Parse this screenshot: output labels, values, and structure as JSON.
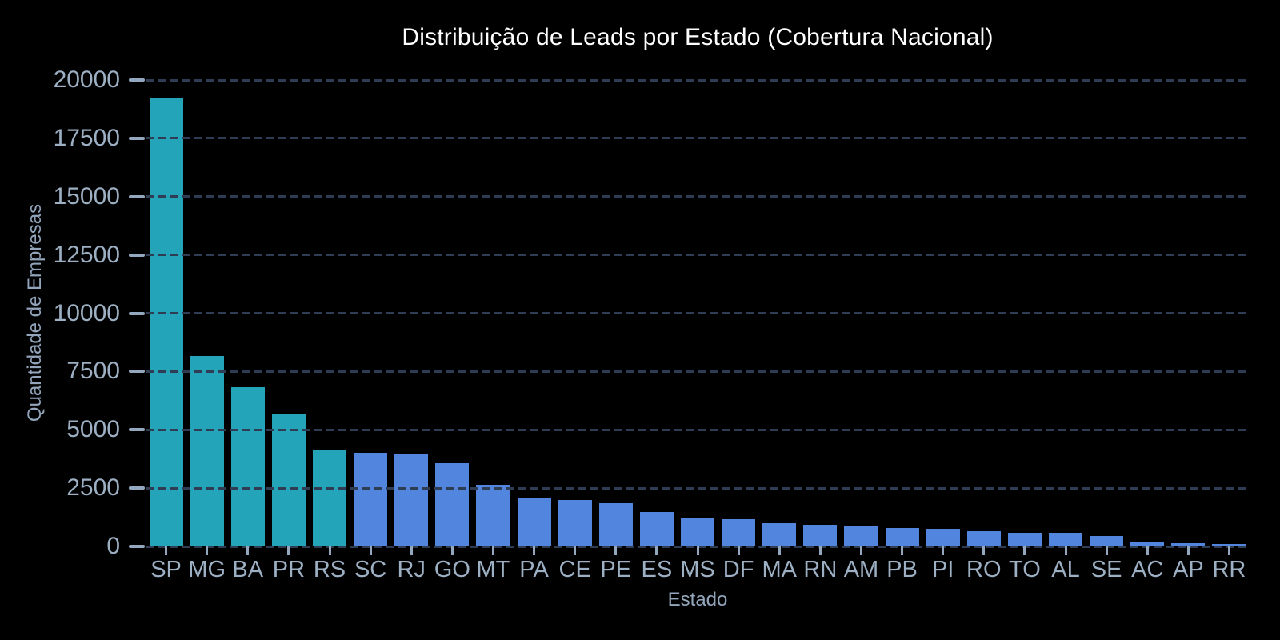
{
  "page": {
    "background": "#000000"
  },
  "chart_data": {
    "type": "bar",
    "title": "Distribuição de Leads por Estado (Cobertura Nacional)",
    "xlabel": "Estado",
    "ylabel": "Quantidade de Empresas",
    "categories": [
      "SP",
      "MG",
      "BA",
      "PR",
      "RS",
      "SC",
      "RJ",
      "GO",
      "MT",
      "PA",
      "CE",
      "PE",
      "ES",
      "MS",
      "DF",
      "MA",
      "RN",
      "AM",
      "PB",
      "PI",
      "RO",
      "TO",
      "AL",
      "SE",
      "AC",
      "AP",
      "RR"
    ],
    "values": [
      19200,
      8170,
      6820,
      5700,
      4150,
      4030,
      3950,
      3570,
      2630,
      2060,
      1980,
      1860,
      1460,
      1230,
      1150,
      980,
      940,
      900,
      800,
      750,
      650,
      600,
      580,
      460,
      200,
      150,
      100
    ],
    "bar_colors": [
      "#24a4b8",
      "#24a4b8",
      "#24a4b8",
      "#24a4b8",
      "#24a4b8",
      "#5286de",
      "#5286de",
      "#5286de",
      "#5286de",
      "#5286de",
      "#5286de",
      "#5286de",
      "#5286de",
      "#5286de",
      "#5286de",
      "#5286de",
      "#5286de",
      "#5286de",
      "#5286de",
      "#5286de",
      "#5286de",
      "#5286de",
      "#5286de",
      "#5286de",
      "#5286de",
      "#5286de",
      "#5286de"
    ],
    "ylim": [
      0,
      20000
    ],
    "yticks": [
      0,
      2500,
      5000,
      7500,
      10000,
      12500,
      15000,
      17500,
      20000
    ],
    "grid": true,
    "gridline_style": "dashed",
    "legend": "none",
    "colors": {
      "background": "#000000",
      "title": "#ffffff",
      "tick_label": "#9cafc3",
      "axis_title": "#92a5bb",
      "gridline": "#2f3d54",
      "tick_mark": "#93a7bf",
      "teal_bar": "#24a4b8",
      "blue_bar": "#5286de"
    }
  }
}
